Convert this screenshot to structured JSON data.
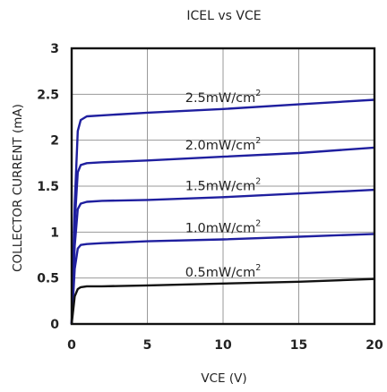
{
  "chart_data": {
    "type": "line",
    "title": "ICEL vs VCE",
    "xlabel": "VCE (V)",
    "ylabel": "COLLECTOR CURRENT (mA)",
    "xlim": [
      0,
      20
    ],
    "ylim": [
      0,
      3
    ],
    "xticks": [
      "0",
      "5",
      "10",
      "15",
      "20"
    ],
    "yticks": [
      "0",
      "0.5",
      "1",
      "1.5",
      "2",
      "2.5",
      "3"
    ],
    "grid": true,
    "colors": {
      "blue_series": "#1f1f9f",
      "black_series": "#111111",
      "grid": "#9a9a9a"
    },
    "series": [
      {
        "name": "2.5mW/cm",
        "name_sup": "2",
        "color": "#1f1f9f",
        "x": [
          0,
          0.2,
          0.4,
          0.6,
          1,
          2,
          5,
          10,
          15,
          20
        ],
        "y": [
          0,
          1.3,
          2.1,
          2.22,
          2.26,
          2.27,
          2.3,
          2.34,
          2.39,
          2.44
        ]
      },
      {
        "name": "2.0mW/cm",
        "name_sup": "2",
        "color": "#1f1f9f",
        "x": [
          0,
          0.2,
          0.4,
          0.6,
          1,
          2,
          5,
          10,
          15,
          20
        ],
        "y": [
          0,
          1.1,
          1.65,
          1.73,
          1.75,
          1.76,
          1.78,
          1.82,
          1.86,
          1.92
        ]
      },
      {
        "name": "1.5mW/cm",
        "name_sup": "2",
        "color": "#1f1f9f",
        "x": [
          0,
          0.2,
          0.4,
          0.6,
          1,
          2,
          5,
          10,
          15,
          20
        ],
        "y": [
          0,
          0.85,
          1.25,
          1.31,
          1.33,
          1.34,
          1.35,
          1.38,
          1.42,
          1.46
        ]
      },
      {
        "name": "1.0mW/cm",
        "name_sup": "2",
        "color": "#1f1f9f",
        "x": [
          0,
          0.2,
          0.4,
          0.6,
          1,
          2,
          5,
          10,
          15,
          20
        ],
        "y": [
          0,
          0.6,
          0.82,
          0.86,
          0.87,
          0.88,
          0.9,
          0.92,
          0.95,
          0.98
        ]
      },
      {
        "name": "0.5mW/cm",
        "name_sup": "2",
        "color": "#111111",
        "x": [
          0,
          0.2,
          0.4,
          0.6,
          1,
          2,
          5,
          10,
          15,
          20
        ],
        "y": [
          0,
          0.3,
          0.38,
          0.4,
          0.41,
          0.41,
          0.42,
          0.44,
          0.46,
          0.49
        ]
      }
    ]
  }
}
